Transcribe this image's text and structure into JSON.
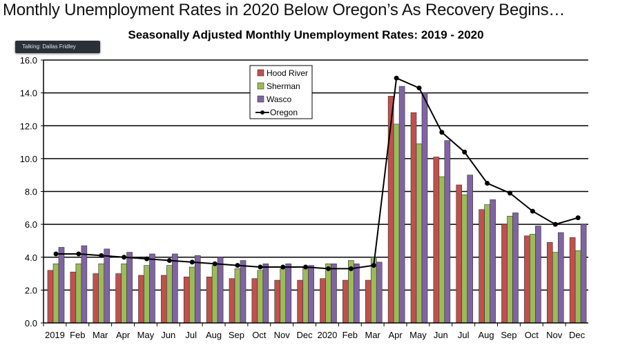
{
  "slide_title": "Monthly Unemployment Rates in 2020 Below Oregon’s As Recovery Begins…",
  "tooltip": "Talking: Dallas Fridley",
  "chart_data": {
    "type": "bar",
    "title": "Seasonally Adjusted Monthly Unemployment Rates: 2019 - 2020",
    "xlabel": "",
    "ylabel": "",
    "ylim": [
      0,
      16
    ],
    "yticks": [
      "0.0",
      "2.0",
      "4.0",
      "6.0",
      "8.0",
      "10.0",
      "12.0",
      "14.0",
      "16.0"
    ],
    "grid": true,
    "legend_position": "top-center",
    "categories": [
      "2019",
      "Feb",
      "Mar",
      "Apr",
      "May",
      "Jun",
      "Jul",
      "Aug",
      "Sep",
      "Oct",
      "Nov",
      "Dec",
      "2020",
      "Feb",
      "Mar",
      "Apr",
      "May",
      "Jun",
      "Jul",
      "Aug",
      "Sep",
      "Oct",
      "Nov",
      "Dec"
    ],
    "series": [
      {
        "name": "Hood River",
        "kind": "bar",
        "color": "#c0504d",
        "values": [
          3.2,
          3.1,
          3.0,
          3.0,
          2.9,
          2.9,
          2.8,
          2.8,
          2.7,
          2.7,
          2.6,
          2.6,
          2.7,
          2.6,
          2.6,
          13.8,
          12.8,
          10.1,
          8.4,
          6.9,
          6.0,
          5.3,
          4.9,
          5.2
        ]
      },
      {
        "name": "Sherman",
        "kind": "bar",
        "color": "#9bbb59",
        "values": [
          3.6,
          3.6,
          3.6,
          3.6,
          3.5,
          3.5,
          3.4,
          3.5,
          3.3,
          3.2,
          3.3,
          3.4,
          3.6,
          3.8,
          4.0,
          12.1,
          10.9,
          8.9,
          7.8,
          7.2,
          6.5,
          5.4,
          4.3,
          4.4
        ]
      },
      {
        "name": "Wasco",
        "kind": "bar",
        "color": "#8064a2",
        "values": [
          4.6,
          4.7,
          4.5,
          4.3,
          4.2,
          4.2,
          4.1,
          4.0,
          3.8,
          3.6,
          3.6,
          3.5,
          3.6,
          3.6,
          3.7,
          14.4,
          14.0,
          11.1,
          9.0,
          7.5,
          6.7,
          5.9,
          5.5,
          6.0
        ]
      },
      {
        "name": "Oregon",
        "kind": "line",
        "color": "#000000",
        "values": [
          4.2,
          4.2,
          4.1,
          4.0,
          3.9,
          3.8,
          3.7,
          3.6,
          3.5,
          3.4,
          3.4,
          3.4,
          3.3,
          3.3,
          3.5,
          14.9,
          14.3,
          11.6,
          10.4,
          8.5,
          7.9,
          6.8,
          6.0,
          6.4
        ]
      }
    ]
  }
}
